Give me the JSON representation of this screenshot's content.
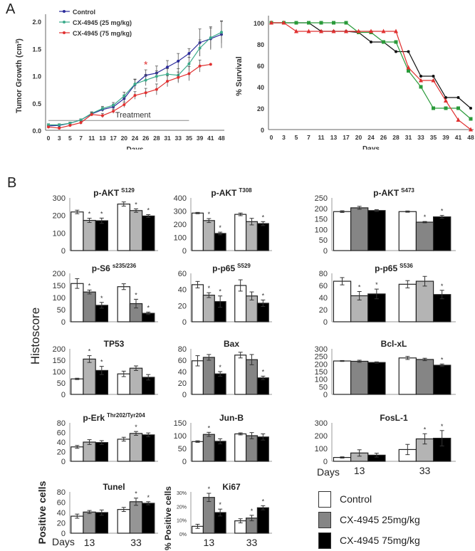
{
  "panel_labels": {
    "a": "A",
    "b": "B"
  },
  "chart_data": [
    {
      "type": "line",
      "ylabel": "Tumor Growth (cm³)",
      "xlabel": "Days",
      "categories": [
        "0",
        "3",
        "5",
        "7",
        "11",
        "13",
        "17",
        "20",
        "24",
        "26",
        "28",
        "31",
        "33",
        "35",
        "39",
        "41",
        "48"
      ],
      "ylim": [
        0,
        2.0
      ],
      "yticks": [
        "0.0",
        "0.5",
        "1.0",
        "1.5",
        "2.0"
      ],
      "annotation": "Treatment",
      "annotation_range_days": [
        "0",
        "35"
      ],
      "significance_marker": {
        "label": "*",
        "day": "26",
        "color": "#e03030"
      },
      "legend_position": "top-left",
      "series": [
        {
          "name": "Control",
          "color": "#2a2a9a",
          "values": [
            0.08,
            0.09,
            0.13,
            0.19,
            0.3,
            0.38,
            0.43,
            0.58,
            0.84,
            1.01,
            1.05,
            1.16,
            1.27,
            1.41,
            1.61,
            1.68,
            1.76
          ],
          "errors": [
            0.02,
            0.02,
            0.02,
            0.02,
            0.03,
            0.04,
            0.05,
            0.07,
            0.09,
            0.1,
            0.13,
            0.12,
            0.14,
            0.09,
            0.25,
            0.2,
            0.25
          ]
        },
        {
          "name": "CX-4945 (25 mg/kg)",
          "color": "#3aaa8a",
          "values": [
            0.1,
            0.1,
            0.13,
            0.19,
            0.31,
            0.4,
            0.46,
            0.63,
            0.85,
            0.92,
            0.99,
            1.03,
            1.01,
            1.22,
            1.51,
            1.7,
            1.8
          ],
          "errors": [
            0.02,
            0.02,
            0.02,
            0.02,
            0.03,
            0.04,
            0.05,
            0.07,
            0.09,
            0.1,
            0.1,
            0.1,
            0.12,
            0.12,
            0.15,
            0.2,
            0.2
          ]
        },
        {
          "name": "CX-4945 (75 mg/kg)",
          "color": "#e03030",
          "values": [
            0.06,
            0.04,
            0.09,
            0.14,
            0.29,
            0.27,
            0.35,
            0.47,
            0.64,
            0.69,
            0.75,
            0.9,
            0.97,
            1.04,
            1.18,
            1.21,
            null
          ],
          "errors": [
            0.02,
            0.02,
            0.02,
            0.03,
            0.03,
            0.04,
            0.04,
            0.05,
            0.07,
            0.08,
            0.1,
            0.1,
            0.1,
            0.13,
            0.11,
            0,
            0
          ]
        }
      ]
    },
    {
      "type": "line",
      "ylabel": "% Survival",
      "xlabel": "Days",
      "categories": [
        "0",
        "3",
        "5",
        "7",
        "11",
        "13",
        "17",
        "20",
        "24",
        "26",
        "28",
        "31",
        "33",
        "35",
        "39",
        "41",
        "48"
      ],
      "ylim": [
        0,
        100
      ],
      "yticks": [
        "0",
        "20",
        "40",
        "60",
        "80",
        "100"
      ],
      "series": [
        {
          "color": "#111111",
          "marker": "circle",
          "values": [
            100,
            100,
            100,
            100,
            92,
            92,
            92,
            91,
            82,
            82,
            73,
            73,
            50,
            50,
            30,
            30,
            20
          ]
        },
        {
          "color": "#2a9a3a",
          "marker": "square",
          "values": [
            100,
            100,
            100,
            100,
            100,
            100,
            100,
            91,
            91,
            82,
            82,
            55,
            40,
            20,
            20,
            20,
            10
          ]
        },
        {
          "color": "#e03030",
          "marker": "triangle",
          "values": [
            100,
            100,
            92,
            92,
            92,
            92,
            92,
            92,
            92,
            92,
            92,
            58,
            46,
            46,
            27,
            9,
            0
          ]
        }
      ]
    },
    {
      "type": "bar",
      "title": "p-AKT",
      "sup": "S129",
      "ymax": 300,
      "yticks": [
        "0",
        "100",
        "200",
        "300"
      ],
      "mid_color": "#b4b4b4",
      "groups": [
        "13",
        "33"
      ],
      "values": [
        [
          220,
          172,
          170
        ],
        [
          265,
          228,
          197
        ]
      ],
      "errors": [
        [
          10,
          12,
          15
        ],
        [
          12,
          10,
          8
        ]
      ],
      "stars": [
        [
          0,
          1,
          1
        ],
        [
          0,
          1,
          1
        ]
      ]
    },
    {
      "type": "bar",
      "title": "p-AKT",
      "sup": "T308",
      "ymax": 400,
      "yticks": [
        "0",
        "100",
        "200",
        "300",
        "400"
      ],
      "mid_color": "#b4b4b4",
      "groups": [
        "13",
        "33"
      ],
      "values": [
        [
          285,
          228,
          130
        ],
        [
          275,
          220,
          205
        ]
      ],
      "errors": [
        [
          5,
          15,
          10
        ],
        [
          10,
          25,
          15
        ]
      ],
      "stars": [
        [
          0,
          1,
          1
        ],
        [
          0,
          0,
          1
        ]
      ]
    },
    {
      "type": "bar",
      "title": "p-AKT",
      "sup": "S473",
      "ymax": 250,
      "yticks": [
        "0",
        "50",
        "100",
        "150",
        "200",
        "250"
      ],
      "mid_color": "#858585",
      "groups": [
        "13",
        "33"
      ],
      "values": [
        [
          185,
          203,
          190
        ],
        [
          185,
          135,
          160
        ]
      ],
      "errors": [
        [
          4,
          7,
          4
        ],
        [
          3,
          3,
          7
        ]
      ],
      "stars": [
        [
          0,
          0,
          0
        ],
        [
          0,
          1,
          1
        ]
      ]
    },
    {
      "type": "bar",
      "title": "p-S6",
      "sup": "s235/236",
      "ymax": 200,
      "yticks": [
        "0",
        "50",
        "100",
        "150",
        "200"
      ],
      "mid_color": "#858585",
      "groups": [
        "13",
        "33"
      ],
      "values": [
        [
          158,
          123,
          68
        ],
        [
          145,
          75,
          35
        ]
      ],
      "errors": [
        [
          20,
          8,
          12
        ],
        [
          12,
          18,
          5
        ]
      ],
      "stars": [
        [
          0,
          1,
          1
        ],
        [
          0,
          1,
          1
        ]
      ]
    },
    {
      "type": "bar",
      "title": "p-p65",
      "sup": "S529",
      "ymax": 60,
      "yticks": [
        "0",
        "20",
        "40",
        "60"
      ],
      "mid_color": "#b4b4b4",
      "groups": [
        "13",
        "33"
      ],
      "values": [
        [
          46,
          33,
          25
        ],
        [
          45,
          32,
          23
        ]
      ],
      "errors": [
        [
          4,
          3,
          7
        ],
        [
          7,
          5,
          4
        ]
      ],
      "stars": [
        [
          0,
          1,
          1
        ],
        [
          0,
          0,
          1
        ]
      ]
    },
    {
      "type": "bar",
      "title": "p-p65",
      "sup": "S536",
      "ymax": 80,
      "yticks": [
        "0",
        "20",
        "40",
        "60",
        "80"
      ],
      "mid_color": "#b4b4b4",
      "groups": [
        "13",
        "33"
      ],
      "values": [
        [
          67,
          43,
          46
        ],
        [
          62,
          67,
          45
        ]
      ],
      "errors": [
        [
          6,
          7,
          8
        ],
        [
          6,
          8,
          7
        ]
      ],
      "stars": [
        [
          0,
          1,
          1
        ],
        [
          0,
          0,
          1
        ]
      ]
    },
    {
      "type": "bar",
      "title": "TP53",
      "sup": "",
      "ymax": 200,
      "yticks": [
        "0",
        "50",
        "100",
        "150",
        "200"
      ],
      "mid_color": "#b4b4b4",
      "groups": [
        "13",
        "33"
      ],
      "values": [
        [
          68,
          155,
          105
        ],
        [
          90,
          115,
          75
        ]
      ],
      "errors": [
        [
          3,
          15,
          18
        ],
        [
          12,
          10,
          12
        ]
      ],
      "stars": [
        [
          0,
          1,
          1
        ],
        [
          0,
          0,
          0
        ]
      ]
    },
    {
      "type": "bar",
      "title": "Bax",
      "sup": "",
      "ymax": 80,
      "yticks": [
        "0",
        "20",
        "40",
        "60",
        "80"
      ],
      "mid_color": "#858585",
      "groups": [
        "13",
        "33"
      ],
      "values": [
        [
          59,
          65,
          36
        ],
        [
          69,
          61,
          29
        ]
      ],
      "errors": [
        [
          9,
          5,
          4
        ],
        [
          5,
          9,
          3
        ]
      ],
      "stars": [
        [
          0,
          0,
          1
        ],
        [
          0,
          0,
          1
        ]
      ]
    },
    {
      "type": "bar",
      "title": "Bcl-xL",
      "sup": "",
      "ymax": 300,
      "yticks": [
        "0",
        "50",
        "100",
        "150",
        "200",
        "250",
        "300"
      ],
      "mid_color": "#858585",
      "groups": [
        "13",
        "33"
      ],
      "values": [
        [
          220,
          218,
          210
        ],
        [
          240,
          230,
          192
        ]
      ],
      "errors": [
        [
          3,
          7,
          4
        ],
        [
          10,
          8,
          8
        ]
      ],
      "stars": [
        [
          0,
          0,
          0
        ],
        [
          0,
          0,
          1
        ]
      ]
    },
    {
      "type": "bar",
      "title": "p-Erk",
      "sup": "Thr202/Tyr204",
      "ymax": 80,
      "yticks": [
        "0",
        "20",
        "40",
        "60",
        "80"
      ],
      "mid_color": "#b4b4b4",
      "groups": [
        "13",
        "33"
      ],
      "values": [
        [
          30,
          40,
          39
        ],
        [
          46,
          58,
          55
        ]
      ],
      "errors": [
        [
          3,
          5,
          4
        ],
        [
          4,
          4,
          4
        ]
      ],
      "stars": [
        [
          0,
          0,
          0
        ],
        [
          0,
          1,
          0
        ]
      ]
    },
    {
      "type": "bar",
      "title": "Jun-B",
      "sup": "",
      "ymax": 150,
      "yticks": [
        "0",
        "50",
        "100",
        "150"
      ],
      "mid_color": "#858585",
      "groups": [
        "13",
        "33"
      ],
      "values": [
        [
          77,
          105,
          78
        ],
        [
          107,
          100,
          95
        ]
      ],
      "errors": [
        [
          3,
          8,
          10
        ],
        [
          4,
          12,
          12
        ]
      ],
      "stars": [
        [
          0,
          1,
          0
        ],
        [
          0,
          0,
          0
        ]
      ]
    },
    {
      "type": "bar",
      "title": "FosL-1",
      "sup": "",
      "ymax": 300,
      "yticks": [
        "0",
        "100",
        "200",
        "300"
      ],
      "mid_color": "#b4b4b4",
      "groups": [
        "13",
        "33"
      ],
      "values": [
        [
          30,
          65,
          48
        ],
        [
          92,
          175,
          180
        ]
      ],
      "errors": [
        [
          5,
          25,
          15
        ],
        [
          40,
          40,
          60
        ]
      ],
      "stars": [
        [
          0,
          0,
          0
        ],
        [
          0,
          1,
          1
        ]
      ]
    },
    {
      "type": "bar",
      "title": "Tunel",
      "sup": "",
      "ylabel": "Positive cells",
      "ymax": 80,
      "yticks": [
        "0",
        "20",
        "40",
        "60",
        "80"
      ],
      "mid_color": "#959595",
      "groups": [
        "13",
        "33"
      ],
      "values": [
        [
          33,
          41,
          40
        ],
        [
          46,
          61,
          58
        ]
      ],
      "errors": [
        [
          4,
          3,
          5
        ],
        [
          4,
          7,
          3
        ]
      ],
      "stars": [
        [
          0,
          0,
          0
        ],
        [
          0,
          1,
          1
        ]
      ]
    },
    {
      "type": "bar",
      "title": "Ki67",
      "sup": "",
      "ylabel": "% Positive cells",
      "ymax": 30,
      "yticks": [
        "0%",
        "10%",
        "20%",
        "30%"
      ],
      "mid_color": "#858585",
      "groups": [
        "13",
        "33"
      ],
      "values": [
        [
          5,
          26,
          15
        ],
        [
          9,
          11,
          18.5
        ]
      ],
      "errors": [
        [
          1.5,
          3,
          2.5
        ],
        [
          1.5,
          2,
          1.5
        ]
      ],
      "stars": [
        [
          0,
          1,
          1
        ],
        [
          0,
          1,
          1
        ]
      ]
    }
  ],
  "panel_b": {
    "ylabel": "Histoscore",
    "days_label": "Days",
    "day_groups": [
      "13",
      "33"
    ],
    "legend": [
      {
        "label": "Control",
        "color": "#ffffff"
      },
      {
        "label": "CX-4945 25mg/kg",
        "color": "#858585"
      },
      {
        "label": "CX-4945 75mg/kg",
        "color": "#000000"
      }
    ]
  }
}
